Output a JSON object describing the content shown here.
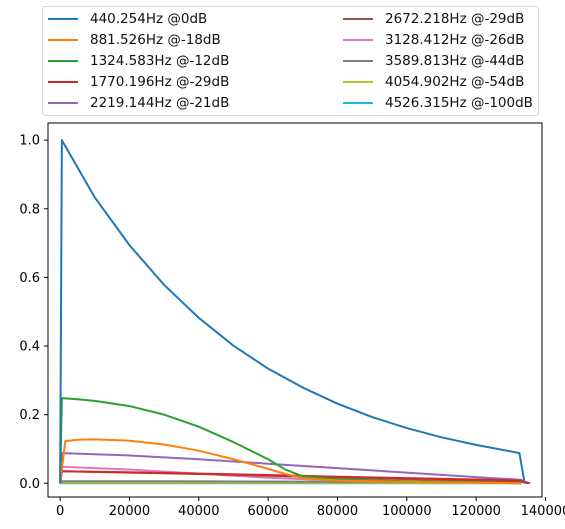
{
  "chart_data": {
    "type": "line",
    "title": "",
    "xlabel": "",
    "ylabel": "",
    "xlim": [
      -3500,
      139000
    ],
    "ylim": [
      -0.04,
      1.05
    ],
    "xticks": [
      0,
      20000,
      40000,
      60000,
      80000,
      100000,
      120000,
      140000
    ],
    "xtick_labels": [
      "0",
      "20000",
      "40000",
      "60000",
      "80000",
      "100000",
      "120000",
      "140000"
    ],
    "yticks": [
      0.0,
      0.2,
      0.4,
      0.6,
      0.8,
      1.0
    ],
    "ytick_labels": [
      "0.0",
      "0.2",
      "0.4",
      "0.6",
      "0.8",
      "1.0"
    ],
    "grid": false,
    "legend_position": "above plot, two columns",
    "series": [
      {
        "name": "440.254Hz @0dB",
        "color": "#1f77b4",
        "x": [
          0,
          500,
          10000,
          20000,
          30000,
          40000,
          50000,
          60000,
          70000,
          80000,
          90000,
          100000,
          110000,
          120000,
          132500,
          134000
        ],
        "y": [
          0.0,
          1.0,
          0.833,
          0.694,
          0.578,
          0.482,
          0.401,
          0.334,
          0.279,
          0.232,
          0.193,
          0.161,
          0.134,
          0.112,
          0.088,
          0.0
        ]
      },
      {
        "name": "881.526Hz @-18dB",
        "color": "#ff7f0e",
        "x": [
          0,
          1500,
          5000,
          10000,
          20000,
          30000,
          40000,
          50000,
          60000,
          65000,
          70000,
          80000,
          100000,
          120000,
          133000
        ],
        "y": [
          0.0,
          0.123,
          0.127,
          0.128,
          0.124,
          0.113,
          0.095,
          0.07,
          0.042,
          0.027,
          0.015,
          0.008,
          0.004,
          0.002,
          0.0
        ]
      },
      {
        "name": "1324.583Hz @-12dB",
        "color": "#2ca02c",
        "x": [
          0,
          500,
          5000,
          10000,
          20000,
          30000,
          40000,
          50000,
          60000,
          65000,
          70000,
          80000,
          100000,
          120000,
          133000
        ],
        "y": [
          0.0,
          0.248,
          0.245,
          0.24,
          0.225,
          0.2,
          0.165,
          0.12,
          0.07,
          0.04,
          0.02,
          0.012,
          0.006,
          0.003,
          0.0
        ]
      },
      {
        "name": "1770.196Hz @-29dB",
        "color": "#d62728",
        "x": [
          0,
          500,
          20000,
          40000,
          60000,
          80000,
          100000,
          120000,
          133000,
          135500
        ],
        "y": [
          0.0,
          0.035,
          0.032,
          0.028,
          0.024,
          0.019,
          0.015,
          0.011,
          0.008,
          0.0
        ]
      },
      {
        "name": "2219.144Hz @-21dB",
        "color": "#9467bd",
        "x": [
          0,
          500,
          20000,
          40000,
          60000,
          80000,
          100000,
          120000,
          133000,
          134500
        ],
        "y": [
          0.0,
          0.088,
          0.081,
          0.07,
          0.057,
          0.044,
          0.031,
          0.018,
          0.01,
          0.0
        ]
      },
      {
        "name": "2672.218Hz @-29dB",
        "color": "#8c564b",
        "x": [
          0,
          500,
          20000,
          40000,
          60000,
          80000,
          100000,
          120000,
          133000,
          135000
        ],
        "y": [
          0.0,
          0.035,
          0.031,
          0.027,
          0.022,
          0.017,
          0.012,
          0.008,
          0.004,
          0.0
        ]
      },
      {
        "name": "3128.412Hz @-26dB",
        "color": "#e377c2",
        "x": [
          0,
          500,
          20000,
          40000,
          60000,
          80000,
          100000,
          120000,
          133000
        ],
        "y": [
          0.0,
          0.048,
          0.04,
          0.028,
          0.016,
          0.008,
          0.004,
          0.002,
          0.0
        ]
      },
      {
        "name": "3589.813Hz @-44dB",
        "color": "#7f7f7f",
        "x": [
          0,
          500,
          30000,
          60000,
          90000,
          120000,
          133000
        ],
        "y": [
          0.0,
          0.006,
          0.006,
          0.005,
          0.004,
          0.003,
          0.0
        ]
      },
      {
        "name": "4054.902Hz @-54dB",
        "color": "#bcbd22",
        "x": [
          0,
          500,
          30000,
          60000,
          90000,
          120000,
          133000
        ],
        "y": [
          0.0,
          0.002,
          0.002,
          0.002,
          0.001,
          0.001,
          0.0
        ]
      },
      {
        "name": "4526.315Hz @-100dB",
        "color": "#17becf",
        "x": [
          0,
          500,
          60000,
          120000,
          133000
        ],
        "y": [
          0.0,
          0.0,
          0.0,
          0.0,
          0.0
        ]
      }
    ]
  }
}
